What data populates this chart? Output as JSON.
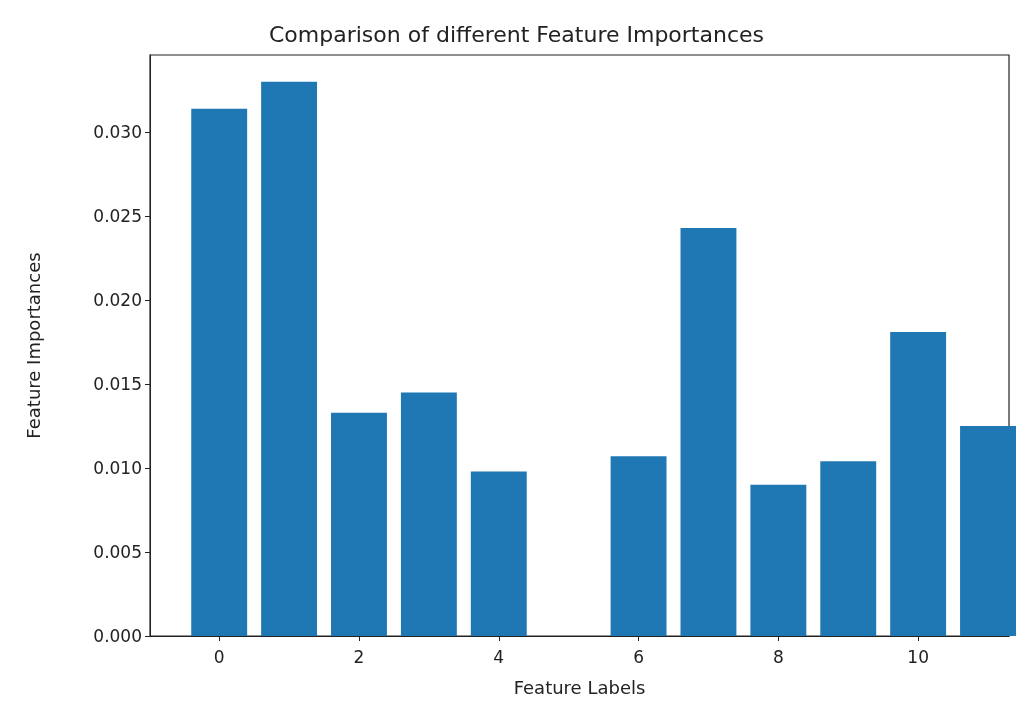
{
  "chart_data": {
    "type": "bar",
    "title": "Comparison of different Feature Importances",
    "xlabel": "Feature Labels",
    "ylabel": "Feature Importances",
    "x": [
      0,
      1,
      2,
      3,
      4,
      5,
      6,
      7,
      8,
      9,
      10,
      11
    ],
    "values": [
      0.0314,
      0.033,
      0.0133,
      0.0145,
      0.0098,
      0,
      0.0107,
      0.0243,
      0.009,
      0.0104,
      0.0181,
      0.0125
    ],
    "color": "#1f77b4",
    "xlim": [
      -0.99,
      11.3
    ],
    "xticks": [
      0,
      2,
      4,
      6,
      8,
      10
    ],
    "ylim": [
      0,
      0.0346
    ],
    "yticks": [
      {
        "value": 0,
        "label": "0.000"
      },
      {
        "value": 0.005,
        "label": "0.005"
      },
      {
        "value": 0.01,
        "label": "0.010"
      },
      {
        "value": 0.015,
        "label": "0.015"
      },
      {
        "value": 0.02,
        "label": "0.020"
      },
      {
        "value": 0.025,
        "label": "0.025"
      },
      {
        "value": 0.03,
        "label": "0.030"
      }
    ],
    "grid": false
  }
}
